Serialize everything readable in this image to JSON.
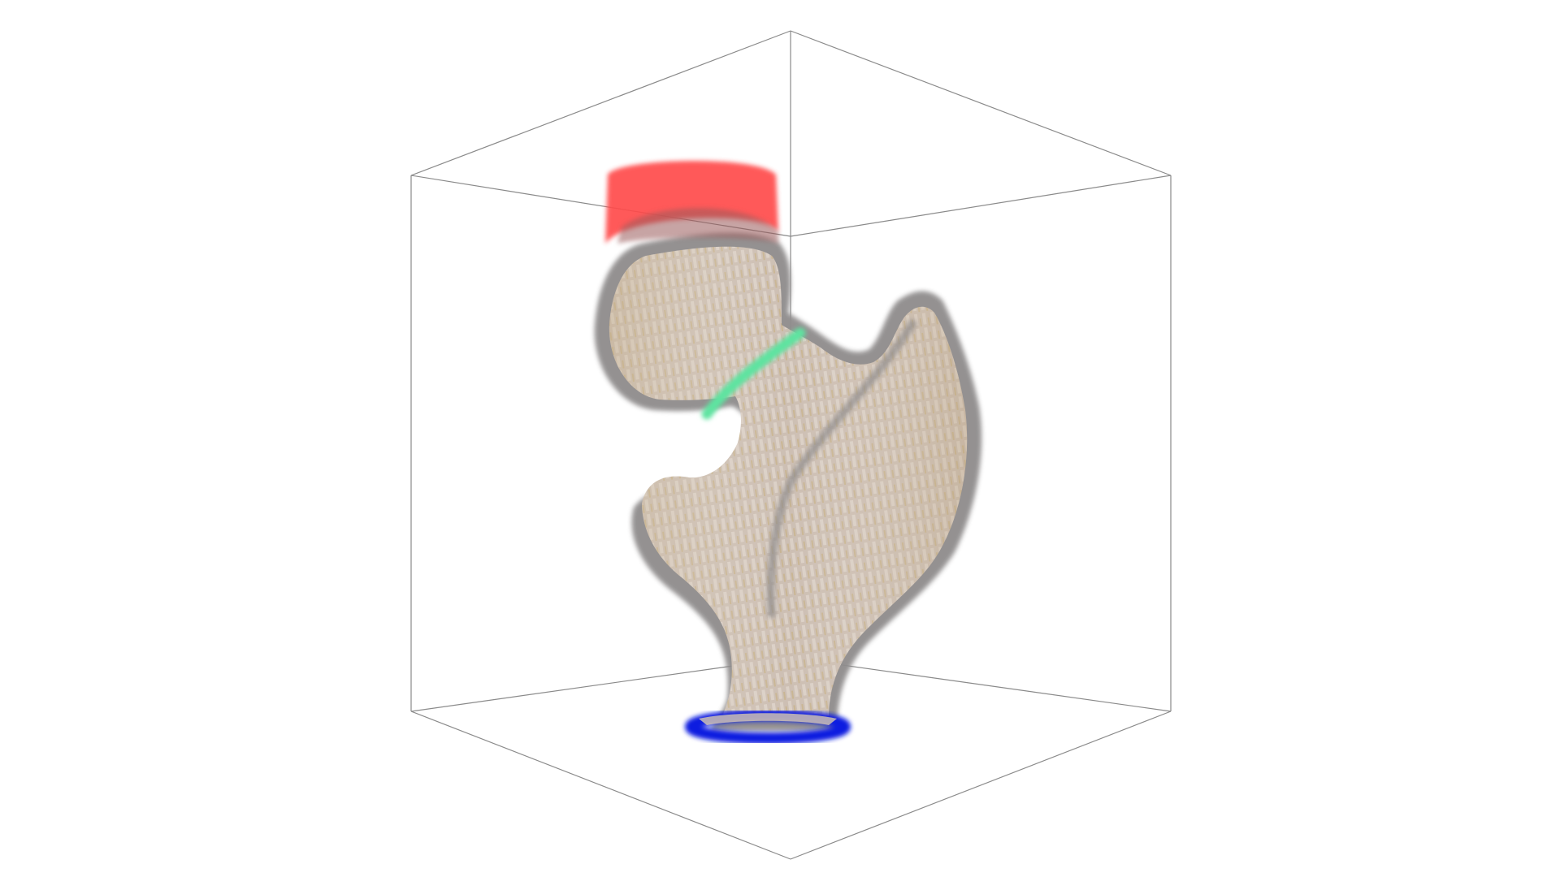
{
  "scene": {
    "subject": "voxel-femur-render",
    "background_color": "#ffffff",
    "bounding_box_color": "#8a8a8a",
    "bone_outline_color": "#8f8c8c",
    "bone_fill_color": "#cfc3b6",
    "bone_shade_color": "#c9b48a",
    "marker_colors": {
      "femoral_head_top": "#ff4b4b",
      "neck_ring": "#5fe3a0",
      "shaft_base_ring": "#0a1fe0"
    }
  }
}
